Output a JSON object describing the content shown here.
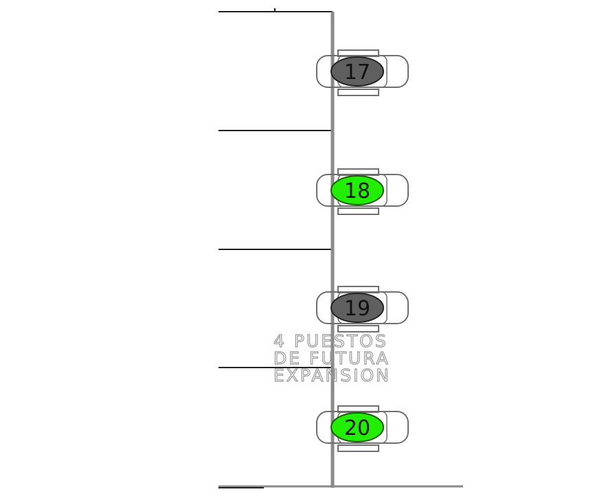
{
  "seats": [
    {
      "number": "17",
      "status": "occupied",
      "color": "#5f5f5f"
    },
    {
      "number": "18",
      "status": "available",
      "color": "#22ee00"
    },
    {
      "number": "19",
      "status": "occupied",
      "color": "#5f5f5f"
    },
    {
      "number": "20",
      "status": "available",
      "color": "#22ee00"
    }
  ],
  "annotation": {
    "line1": "4 PUESTOS",
    "line2": "DE FUTURA",
    "line3": "EXPANSION"
  },
  "colors": {
    "wall": "#8a8a8a",
    "partition": "#1f1f1f",
    "seat_outline": "#6e6e6e",
    "annotation_text": "#9a9a9a"
  }
}
